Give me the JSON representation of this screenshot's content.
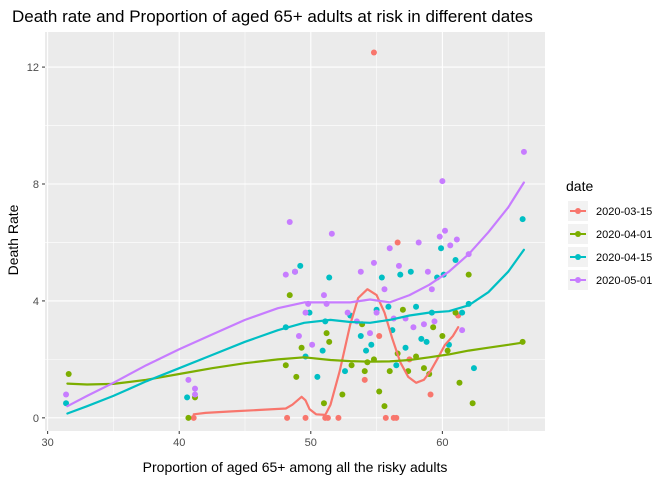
{
  "chart_data": {
    "type": "scatter",
    "title": "Death rate and Proportion of aged 65+ adults at risk in different dates",
    "xlabel": "Proportion of aged 65+ among all the risky adults",
    "ylabel": "Death Rate",
    "xlim": [
      29.8,
      67.8
    ],
    "ylim": [
      -0.45,
      13.2
    ],
    "xticks": [
      30,
      40,
      50,
      60
    ],
    "yticks": [
      0,
      4,
      8,
      12
    ],
    "xtick_labels": [
      "30",
      "40",
      "50",
      "60"
    ],
    "ytick_labels": [
      "0",
      "4",
      "8",
      "12"
    ],
    "grid": true,
    "background": "#ebebeb",
    "legend": {
      "title": "date",
      "placement": "right"
    },
    "series": [
      {
        "name": "2020-03-15",
        "color": "#f8766d",
        "points": [
          [
            41.1,
            0.0
          ],
          [
            48.2,
            0.0
          ],
          [
            49.6,
            0.0
          ],
          [
            51.1,
            0.0
          ],
          [
            51.3,
            0.0
          ],
          [
            52.1,
            0.0
          ],
          [
            54.1,
            1.3
          ],
          [
            54.8,
            12.5
          ],
          [
            55.2,
            2.8
          ],
          [
            55.7,
            0.0
          ],
          [
            56.3,
            0.0
          ],
          [
            56.5,
            0.0
          ],
          [
            56.6,
            6.0
          ],
          [
            57.5,
            2.0
          ],
          [
            59.1,
            0.8
          ],
          [
            61.2,
            3.5
          ]
        ],
        "smooth": [
          [
            41.1,
            0.12
          ],
          [
            42,
            0.17
          ],
          [
            44,
            0.22
          ],
          [
            46,
            0.27
          ],
          [
            48.1,
            0.32
          ],
          [
            48.6,
            0.45
          ],
          [
            49.3,
            0.72
          ],
          [
            49.6,
            0.6
          ],
          [
            49.9,
            0.3
          ],
          [
            50.4,
            0.12
          ],
          [
            51.1,
            0.1
          ],
          [
            51.5,
            0.45
          ],
          [
            52.2,
            1.6
          ],
          [
            53.0,
            3.2
          ],
          [
            53.6,
            4.1
          ],
          [
            54.3,
            4.4
          ],
          [
            55.0,
            4.2
          ],
          [
            55.6,
            3.6
          ],
          [
            56.2,
            2.7
          ],
          [
            56.8,
            1.9
          ],
          [
            57.4,
            1.4
          ],
          [
            58.0,
            1.2
          ],
          [
            58.6,
            1.3
          ],
          [
            59.1,
            1.6
          ],
          [
            59.6,
            2.0
          ],
          [
            60.2,
            2.5
          ],
          [
            60.8,
            2.8
          ],
          [
            61.2,
            3.1
          ]
        ]
      },
      {
        "name": "2020-04-01",
        "color": "#7cae00",
        "points": [
          [
            31.6,
            1.5
          ],
          [
            40.7,
            0.0
          ],
          [
            41.2,
            0.7
          ],
          [
            48.1,
            1.8
          ],
          [
            48.4,
            4.2
          ],
          [
            48.9,
            1.4
          ],
          [
            49.3,
            2.4
          ],
          [
            51.0,
            0.5
          ],
          [
            51.2,
            2.9
          ],
          [
            51.4,
            2.6
          ],
          [
            52.4,
            0.8
          ],
          [
            53.1,
            1.8
          ],
          [
            53.9,
            3.2
          ],
          [
            54.1,
            1.6
          ],
          [
            54.3,
            1.9
          ],
          [
            54.8,
            2.0
          ],
          [
            55.2,
            0.9
          ],
          [
            55.6,
            0.4
          ],
          [
            56.0,
            1.6
          ],
          [
            56.6,
            2.2
          ],
          [
            57.0,
            3.7
          ],
          [
            57.4,
            1.6
          ],
          [
            58.0,
            2.1
          ],
          [
            58.6,
            1.7
          ],
          [
            59.0,
            1.5
          ],
          [
            59.3,
            3.1
          ],
          [
            60.0,
            2.8
          ],
          [
            60.4,
            2.3
          ],
          [
            61.0,
            3.6
          ],
          [
            61.3,
            1.2
          ],
          [
            62.0,
            4.9
          ],
          [
            62.3,
            0.5
          ],
          [
            66.1,
            2.6
          ]
        ],
        "smooth": [
          [
            31.5,
            1.17
          ],
          [
            33,
            1.14
          ],
          [
            35,
            1.16
          ],
          [
            37.5,
            1.3
          ],
          [
            40,
            1.5
          ],
          [
            42.5,
            1.7
          ],
          [
            45,
            1.87
          ],
          [
            47.5,
            2.0
          ],
          [
            49.5,
            2.07
          ],
          [
            51.5,
            1.98
          ],
          [
            53,
            1.94
          ],
          [
            54.5,
            1.92
          ],
          [
            56,
            1.93
          ],
          [
            57.5,
            1.98
          ],
          [
            59,
            2.07
          ],
          [
            60.5,
            2.17
          ],
          [
            62,
            2.3
          ],
          [
            63.5,
            2.4
          ],
          [
            65,
            2.5
          ],
          [
            66.2,
            2.58
          ]
        ]
      },
      {
        "name": "2020-04-15",
        "color": "#00bfc4",
        "points": [
          [
            31.4,
            0.5
          ],
          [
            40.6,
            0.7
          ],
          [
            48.1,
            3.1
          ],
          [
            48.8,
            5.0
          ],
          [
            49.2,
            5.2
          ],
          [
            49.6,
            2.1
          ],
          [
            49.9,
            3.6
          ],
          [
            50.5,
            1.4
          ],
          [
            50.9,
            2.3
          ],
          [
            51.1,
            3.3
          ],
          [
            51.4,
            4.8
          ],
          [
            52.6,
            1.6
          ],
          [
            53.0,
            3.5
          ],
          [
            53.8,
            2.8
          ],
          [
            54.2,
            2.3
          ],
          [
            54.6,
            2.5
          ],
          [
            55.0,
            3.7
          ],
          [
            55.4,
            4.8
          ],
          [
            55.9,
            3.8
          ],
          [
            56.2,
            3.0
          ],
          [
            56.5,
            1.8
          ],
          [
            56.8,
            4.9
          ],
          [
            57.2,
            2.4
          ],
          [
            57.6,
            5.0
          ],
          [
            58.0,
            3.8
          ],
          [
            58.4,
            2.7
          ],
          [
            58.8,
            2.6
          ],
          [
            59.2,
            3.6
          ],
          [
            59.6,
            4.8
          ],
          [
            59.9,
            5.8
          ],
          [
            60.1,
            4.9
          ],
          [
            60.5,
            2.5
          ],
          [
            61.0,
            5.4
          ],
          [
            61.5,
            3.6
          ],
          [
            62.0,
            3.9
          ],
          [
            62.4,
            1.7
          ],
          [
            66.1,
            6.8
          ]
        ],
        "smooth": [
          [
            31.5,
            0.15
          ],
          [
            33,
            0.4
          ],
          [
            35,
            0.75
          ],
          [
            37.5,
            1.25
          ],
          [
            40,
            1.7
          ],
          [
            42.5,
            2.15
          ],
          [
            45,
            2.6
          ],
          [
            47.5,
            3.0
          ],
          [
            49.5,
            3.25
          ],
          [
            51.5,
            3.35
          ],
          [
            53,
            3.28
          ],
          [
            54.5,
            3.25
          ],
          [
            56,
            3.35
          ],
          [
            57.5,
            3.5
          ],
          [
            59,
            3.6
          ],
          [
            60.5,
            3.65
          ],
          [
            62,
            3.85
          ],
          [
            63.5,
            4.3
          ],
          [
            65,
            5.0
          ],
          [
            66.2,
            5.75
          ]
        ]
      },
      {
        "name": "2020-05-01",
        "color": "#c77cff",
        "points": [
          [
            31.4,
            0.8
          ],
          [
            40.7,
            1.3
          ],
          [
            41.2,
            1.0
          ],
          [
            41.2,
            0.8
          ],
          [
            48.1,
            4.9
          ],
          [
            48.4,
            6.7
          ],
          [
            48.8,
            5.0
          ],
          [
            49.1,
            2.8
          ],
          [
            49.6,
            3.6
          ],
          [
            49.8,
            3.9
          ],
          [
            50.1,
            2.5
          ],
          [
            51.0,
            4.2
          ],
          [
            51.2,
            3.9
          ],
          [
            51.6,
            6.3
          ],
          [
            52.8,
            3.6
          ],
          [
            53.5,
            3.3
          ],
          [
            53.8,
            5.0
          ],
          [
            54.5,
            2.9
          ],
          [
            54.8,
            5.3
          ],
          [
            55.0,
            3.6
          ],
          [
            55.6,
            4.4
          ],
          [
            56.0,
            5.8
          ],
          [
            56.3,
            3.4
          ],
          [
            56.7,
            5.2
          ],
          [
            57.2,
            3.4
          ],
          [
            57.8,
            3.1
          ],
          [
            58.2,
            6.0
          ],
          [
            58.6,
            3.2
          ],
          [
            58.9,
            5.0
          ],
          [
            59.2,
            4.4
          ],
          [
            59.4,
            3.3
          ],
          [
            59.8,
            6.2
          ],
          [
            60.0,
            8.1
          ],
          [
            60.2,
            6.4
          ],
          [
            60.6,
            5.9
          ],
          [
            61.1,
            6.1
          ],
          [
            61.5,
            3.0
          ],
          [
            62.0,
            5.6
          ],
          [
            66.2,
            9.1
          ]
        ],
        "smooth": [
          [
            31.5,
            0.4
          ],
          [
            33,
            0.75
          ],
          [
            35,
            1.2
          ],
          [
            37.5,
            1.8
          ],
          [
            40,
            2.35
          ],
          [
            42.5,
            2.85
          ],
          [
            45,
            3.35
          ],
          [
            47.5,
            3.75
          ],
          [
            49.5,
            3.95
          ],
          [
            51.5,
            3.95
          ],
          [
            53,
            3.95
          ],
          [
            54.5,
            4.05
          ],
          [
            56,
            3.95
          ],
          [
            57.5,
            4.2
          ],
          [
            59,
            4.55
          ],
          [
            60.5,
            5.0
          ],
          [
            62,
            5.6
          ],
          [
            63.5,
            6.35
          ],
          [
            65,
            7.2
          ],
          [
            66.2,
            8.05
          ]
        ]
      }
    ]
  }
}
